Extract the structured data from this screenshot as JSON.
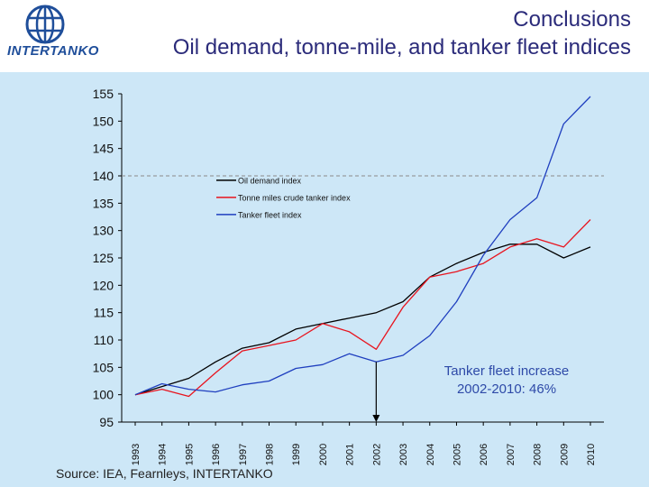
{
  "header": {
    "logo_text": "INTERTANKO",
    "title_line1": "Conclusions",
    "title_line2": "Oil demand, tonne-mile, and tanker fleet indices"
  },
  "colors": {
    "background": "#cde7f7",
    "oil": "#000000",
    "tonne": "#e8141e",
    "fleet": "#1f3fbf",
    "reference": "#8a8a8a",
    "annotation": "#2e4aa8",
    "logo": "#1f4e9a"
  },
  "chart_data": {
    "type": "line",
    "title": "",
    "xlabel": "",
    "ylabel": "",
    "ylim": [
      95,
      155
    ],
    "yticks": [
      95,
      100,
      105,
      110,
      115,
      120,
      125,
      130,
      135,
      140,
      145,
      150,
      155
    ],
    "x": [
      "1993",
      "1994",
      "1995",
      "1996",
      "1997",
      "1998",
      "1999",
      "2000",
      "2001",
      "2002",
      "2003",
      "2004",
      "2005",
      "2006",
      "2007",
      "2008",
      "2009",
      "2010"
    ],
    "reference_line": 140,
    "marker_year": "2002",
    "legend_position": "upper-left",
    "grid": false,
    "series": [
      {
        "name": "Oil demand index",
        "color": "#000000",
        "values": [
          100,
          101.5,
          103,
          106,
          108.5,
          109.5,
          112,
          113,
          114,
          115,
          117,
          121.5,
          124,
          126,
          127.5,
          127.5,
          125,
          127
        ]
      },
      {
        "name": "Tonne miles crude tanker index",
        "color": "#e8141e",
        "values": [
          100,
          101,
          99.7,
          104,
          108,
          109,
          110,
          113,
          111.5,
          108.3,
          116,
          121.5,
          122.5,
          124,
          127,
          128.5,
          127,
          132
        ]
      },
      {
        "name": "Tanker fleet index",
        "color": "#1f3fbf",
        "values": [
          100,
          102,
          101,
          100.5,
          101.8,
          102.5,
          104.8,
          105.5,
          107.5,
          106,
          107.2,
          110.8,
          117,
          125.5,
          132,
          136,
          149.5,
          154.5
        ]
      }
    ],
    "annotation_line1": "Tanker fleet increase",
    "annotation_line2": "2002-2010: 46%",
    "source": "Source: IEA, Fearnleys, INTERTANKO"
  }
}
